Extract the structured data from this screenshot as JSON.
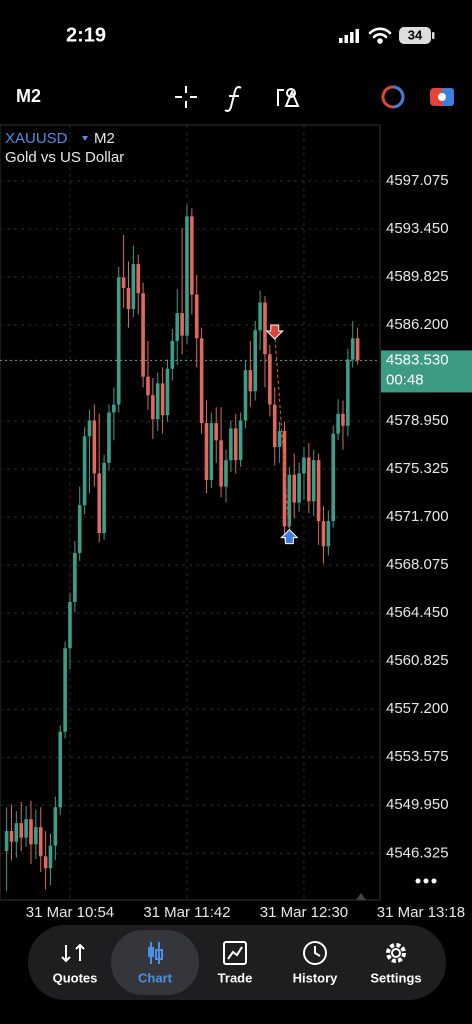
{
  "status_bar": {
    "time": "2:19",
    "battery": "34"
  },
  "toolbar": {
    "timeframe": "M2"
  },
  "chart_data": {
    "type": "candlestick",
    "symbol": "XAUUSD",
    "timeframe": "M2",
    "description": "Gold vs US Dollar",
    "x": [
      "31 Mar 10:28",
      "31 Mar 10:30",
      "31 Mar 10:32",
      "31 Mar 10:34",
      "31 Mar 10:36",
      "31 Mar 10:38",
      "31 Mar 10:40",
      "31 Mar 10:42",
      "31 Mar 10:44",
      "31 Mar 10:46",
      "31 Mar 10:48",
      "31 Mar 10:50",
      "31 Mar 10:52",
      "31 Mar 10:54",
      "31 Mar 10:56",
      "31 Mar 10:58",
      "31 Mar 11:00",
      "31 Mar 11:02",
      "31 Mar 11:04",
      "31 Mar 11:06",
      "31 Mar 11:08",
      "31 Mar 11:10",
      "31 Mar 11:12",
      "31 Mar 11:14",
      "31 Mar 11:16",
      "31 Mar 11:18",
      "31 Mar 11:20",
      "31 Mar 11:22",
      "31 Mar 11:24",
      "31 Mar 11:26",
      "31 Mar 11:28",
      "31 Mar 11:30",
      "31 Mar 11:32",
      "31 Mar 11:34",
      "31 Mar 11:36",
      "31 Mar 11:38",
      "31 Mar 11:40",
      "31 Mar 11:42",
      "31 Mar 11:44",
      "31 Mar 11:46",
      "31 Mar 11:48",
      "31 Mar 11:50",
      "31 Mar 11:52",
      "31 Mar 11:54",
      "31 Mar 11:56",
      "31 Mar 11:58",
      "31 Mar 12:00",
      "31 Mar 12:02",
      "31 Mar 12:04",
      "31 Mar 12:06",
      "31 Mar 12:08",
      "31 Mar 12:10",
      "31 Mar 12:12",
      "31 Mar 12:14",
      "31 Mar 12:16",
      "31 Mar 12:18",
      "31 Mar 12:20",
      "31 Mar 12:22",
      "31 Mar 12:24",
      "31 Mar 12:26",
      "31 Mar 12:28",
      "31 Mar 12:30",
      "31 Mar 12:32",
      "31 Mar 12:34",
      "31 Mar 12:36",
      "31 Mar 12:38",
      "31 Mar 12:40",
      "31 Mar 12:42",
      "31 Mar 12:44",
      "31 Mar 12:46",
      "31 Mar 12:48",
      "31 Mar 12:50",
      "31 Mar 12:52"
    ],
    "open": [
      4546.5,
      4548.0,
      4547.2,
      4548.6,
      4547.5,
      4548.9,
      4547.0,
      4548.3,
      4546.1,
      4545.2,
      4546.9,
      4549.8,
      4555.5,
      4561.8,
      4565.3,
      4569.0,
      4572.6,
      4577.8,
      4579.0,
      4575.0,
      4570.5,
      4575.8,
      4579.6,
      4580.2,
      4589.8,
      4589.0,
      4587.4,
      4590.8,
      4588.6,
      4582.3,
      4580.9,
      4579.1,
      4581.8,
      4579.4,
      4582.9,
      4585.0,
      4587.1,
      4585.4,
      4594.4,
      4588.5,
      4585.2,
      4578.8,
      4574.5,
      4578.8,
      4577.5,
      4574.0,
      4576.0,
      4578.4,
      4576.0,
      4579.0,
      4582.8,
      4581.2,
      4585.8,
      4587.9,
      4584.0,
      4580.2,
      4577.0,
      4578.2,
      4571.0,
      4574.9,
      4572.8,
      4575.0,
      4576.2,
      4572.9,
      4576.0,
      4571.4,
      4569.5,
      4571.4,
      4578.0,
      4579.5,
      4578.6,
      4583.6,
      4585.2
    ],
    "high": [
      4549.8,
      4550.0,
      4549.5,
      4550.2,
      4549.9,
      4550.3,
      4549.6,
      4549.8,
      4548.0,
      4547.8,
      4550.6,
      4556.0,
      4562.3,
      4566.0,
      4569.9,
      4574.0,
      4578.5,
      4579.8,
      4580.2,
      4579.5,
      4576.4,
      4580.2,
      4581.5,
      4590.6,
      4593.0,
      4591.0,
      4592.2,
      4591.5,
      4589.4,
      4585.0,
      4582.2,
      4582.6,
      4583.0,
      4583.6,
      4585.9,
      4588.9,
      4593.5,
      4595.3,
      4595.0,
      4590.0,
      4586.0,
      4580.5,
      4579.6,
      4580.0,
      4580.0,
      4576.8,
      4579.0,
      4579.5,
      4579.6,
      4583.5,
      4585.0,
      4586.5,
      4588.8,
      4588.4,
      4584.7,
      4581.5,
      4578.9,
      4578.9,
      4575.5,
      4576.5,
      4575.8,
      4577.0,
      4577.3,
      4576.8,
      4576.5,
      4572.5,
      4572.2,
      4578.6,
      4580.6,
      4580.5,
      4584.4,
      4586.5,
      4586.0
    ],
    "low": [
      4543.5,
      4545.8,
      4546.0,
      4546.5,
      4546.8,
      4545.5,
      4545.9,
      4544.9,
      4543.6,
      4543.9,
      4545.8,
      4549.2,
      4555.0,
      4560.2,
      4564.5,
      4568.4,
      4571.9,
      4573.5,
      4574.0,
      4569.8,
      4570.0,
      4575.2,
      4577.5,
      4579.6,
      4587.5,
      4586.0,
      4586.8,
      4587.0,
      4581.5,
      4579.8,
      4577.6,
      4578.2,
      4578.0,
      4578.9,
      4582.0,
      4583.2,
      4584.0,
      4584.8,
      4587.0,
      4583.0,
      4578.0,
      4573.5,
      4573.9,
      4575.8,
      4573.2,
      4572.8,
      4575.1,
      4575.0,
      4575.5,
      4578.4,
      4580.0,
      4580.5,
      4584.3,
      4581.5,
      4579.3,
      4575.6,
      4575.8,
      4570.0,
      4570.3,
      4571.6,
      4572.1,
      4573.0,
      4572.0,
      4571.8,
      4569.6,
      4568.2,
      4568.8,
      4570.9,
      4577.5,
      4576.8,
      4577.8,
      4583.0,
      4583.2
    ],
    "close": [
      4548.0,
      4547.2,
      4548.6,
      4547.5,
      4548.9,
      4547.0,
      4548.3,
      4546.1,
      4545.2,
      4546.9,
      4549.8,
      4555.5,
      4561.8,
      4565.3,
      4569.0,
      4572.6,
      4577.8,
      4579.0,
      4575.0,
      4570.5,
      4575.8,
      4579.6,
      4580.2,
      4589.8,
      4589.0,
      4587.4,
      4590.8,
      4588.6,
      4582.3,
      4580.9,
      4579.1,
      4581.8,
      4579.4,
      4582.9,
      4585.0,
      4587.1,
      4585.4,
      4594.4,
      4588.5,
      4585.2,
      4578.8,
      4574.5,
      4578.8,
      4577.5,
      4574.0,
      4576.0,
      4578.4,
      4576.0,
      4579.0,
      4582.8,
      4581.2,
      4585.8,
      4587.9,
      4584.0,
      4580.2,
      4577.0,
      4578.2,
      4571.0,
      4574.9,
      4572.8,
      4575.0,
      4576.2,
      4572.9,
      4576.0,
      4571.4,
      4569.5,
      4571.4,
      4578.0,
      4579.5,
      4578.6,
      4583.6,
      4585.2,
      4583.53
    ],
    "up_color": "#3a9e8a",
    "down_color": "#e0685c",
    "ylim": [
      4542.8,
      4601.3
    ],
    "yticks": [
      4597.075,
      {
        "value": 4593.45,
        "label": "4593.450"
      },
      4589.825,
      {
        "value": 4586.2,
        "label": "4586.200"
      },
      {
        "value": 4578.95,
        "label": "4578.950"
      },
      4575.325,
      {
        "value": 4571.7,
        "label": "4571.700"
      },
      4568.075,
      {
        "value": 4564.45,
        "label": "4564.450"
      },
      4560.825,
      {
        "value": 4557.2,
        "label": "4557.200"
      },
      4553.575,
      {
        "value": 4549.95,
        "label": "4549.950"
      },
      4546.325
    ],
    "xticks": [
      "31 Mar 10:54",
      "31 Mar 11:42",
      "31 Mar 12:30",
      "31 Mar 13:18"
    ],
    "grid": true,
    "last_price": {
      "value": 4583.53,
      "label": "4583.530"
    },
    "countdown": "00:48",
    "markers": [
      {
        "x": "31 Mar 12:18",
        "y": 4585.6,
        "shape": "arrow-down",
        "color": "#e0453b"
      },
      {
        "x": "31 Mar 12:24",
        "y": 4570.3,
        "shape": "arrow-up",
        "color": "#3d7fe0"
      }
    ]
  },
  "tab_bar": {
    "tabs": [
      "Quotes",
      "Chart",
      "Trade",
      "History",
      "Settings"
    ],
    "active": 1
  }
}
